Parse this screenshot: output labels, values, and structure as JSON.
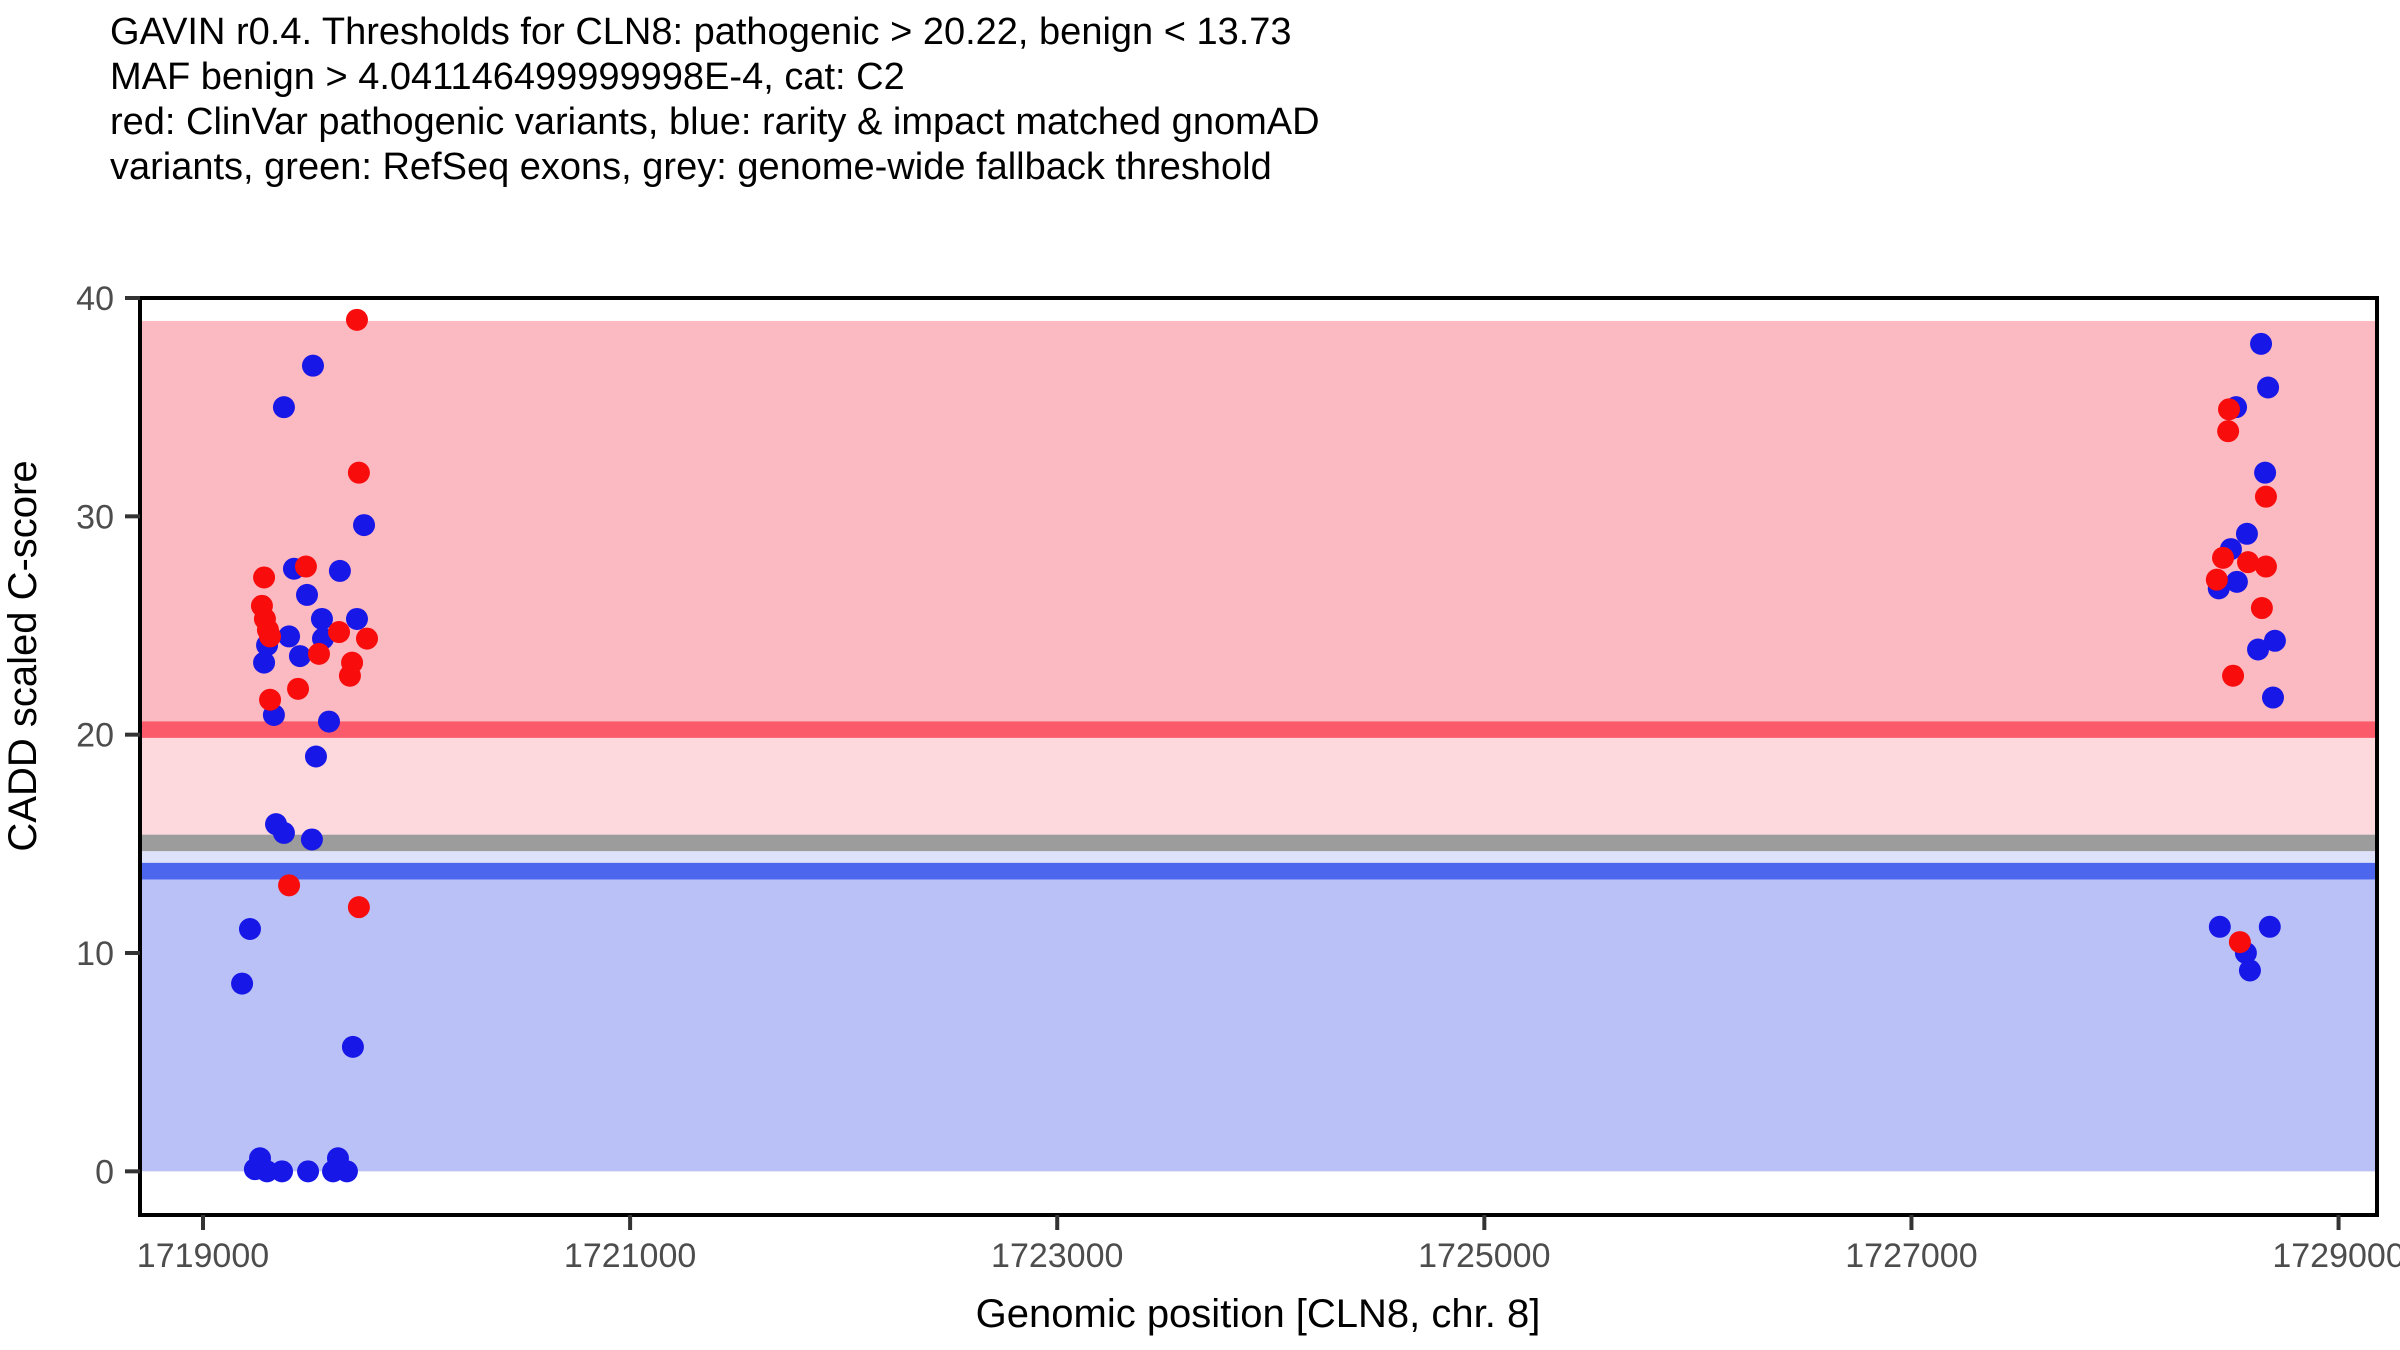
{
  "title": {
    "line1": "GAVIN r0.4. Thresholds for CLN8: pathogenic > 20.22, benign < 13.73",
    "line2": "MAF benign > 4.041146499999998E-4, cat: C2",
    "line3": "red: ClinVar pathogenic variants, blue: rarity & impact matched gnomAD",
    "line4": "variants, green: RefSeq exons, grey: genome-wide fallback threshold"
  },
  "chart_data": {
    "type": "scatter",
    "xlabel": "Genomic position [CLN8, chr. 8]",
    "ylabel": "CADD scaled C-score",
    "xlim": [
      1718705,
      1729180
    ],
    "ylim": [
      -2,
      40
    ],
    "x_ticks": [
      1719000,
      1721000,
      1723000,
      1725000,
      1727000,
      1729000
    ],
    "y_ticks": [
      0,
      10,
      20,
      30,
      40
    ],
    "grid": false,
    "legend_position": "in-title",
    "thresholds": {
      "pathogenic_gt": 20.22,
      "benign_lt": 13.73,
      "genome_wide_fallback": 15,
      "maf_benign_gt": "4.041146499999998E-4",
      "category": "C2"
    },
    "bands": [
      {
        "name": "pathogenic-region",
        "color": "#FBB9C1",
        "from": 20.61,
        "to": 38.95
      },
      {
        "name": "pathogenic-threshold-line",
        "color": "#FB5A6A",
        "from": 19.85,
        "to": 20.61,
        "threshold": 20.22
      },
      {
        "name": "intermediate-region",
        "color": "#FDD8DD",
        "from": 15.42,
        "to": 19.85
      },
      {
        "name": "genome-wide-fallback-band",
        "color": "#9C9C9C",
        "from": 14.66,
        "to": 15.42,
        "threshold": 15
      },
      {
        "name": "benign-upper-strip",
        "color": "#DDE1FA",
        "from": 14.13,
        "to": 14.66
      },
      {
        "name": "benign-threshold-line",
        "color": "#4C66EE",
        "from": 13.36,
        "to": 14.13,
        "threshold": 13.73
      },
      {
        "name": "benign-region",
        "color": "#BAC1F7",
        "from": 0,
        "to": 13.36
      }
    ],
    "series": [
      {
        "id": "gnomad-variant",
        "name": "rarity & impact matched gnomAD variants",
        "color": "#1717E8",
        "points": [
          [
            1719515,
            36.9
          ],
          [
            1719379,
            35.0
          ],
          [
            1719754,
            29.6
          ],
          [
            1719426,
            27.6
          ],
          [
            1719641,
            27.5
          ],
          [
            1719487,
            26.4
          ],
          [
            1719557,
            25.3
          ],
          [
            1719721,
            25.3
          ],
          [
            1719403,
            24.5
          ],
          [
            1719562,
            24.4
          ],
          [
            1719300,
            24.1
          ],
          [
            1719454,
            23.6
          ],
          [
            1719286,
            23.3
          ],
          [
            1719332,
            20.9
          ],
          [
            1719590,
            20.6
          ],
          [
            1719529,
            19.0
          ],
          [
            1719342,
            15.9
          ],
          [
            1719379,
            15.5
          ],
          [
            1719510,
            15.2
          ],
          [
            1719220,
            11.1
          ],
          [
            1719183,
            8.6
          ],
          [
            1719702,
            5.7
          ],
          [
            1719267,
            0.6
          ],
          [
            1719243,
            0.1
          ],
          [
            1719300,
            0.0
          ],
          [
            1719370,
            0.0
          ],
          [
            1719492,
            0.0
          ],
          [
            1719632,
            0.6
          ],
          [
            1719609,
            0.0
          ],
          [
            1719674,
            0.0
          ],
          [
            1728637,
            37.9
          ],
          [
            1728670,
            35.9
          ],
          [
            1728520,
            35.0
          ],
          [
            1728656,
            32.0
          ],
          [
            1728571,
            29.2
          ],
          [
            1728496,
            28.5
          ],
          [
            1728524,
            27.0
          ],
          [
            1728439,
            26.7
          ],
          [
            1728702,
            24.3
          ],
          [
            1728623,
            23.9
          ],
          [
            1728693,
            21.7
          ],
          [
            1728444,
            11.2
          ],
          [
            1728678,
            11.2
          ],
          [
            1728566,
            10.0
          ],
          [
            1728585,
            9.2
          ]
        ]
      },
      {
        "id": "clinvar-pathogenic-variant",
        "name": "ClinVar pathogenic variants",
        "color": "#F80C0C",
        "points": [
          [
            1719721,
            39.0
          ],
          [
            1719730,
            32.0
          ],
          [
            1719482,
            27.7
          ],
          [
            1719286,
            27.2
          ],
          [
            1719276,
            25.9
          ],
          [
            1719290,
            25.3
          ],
          [
            1719304,
            24.8
          ],
          [
            1719314,
            24.5
          ],
          [
            1719637,
            24.7
          ],
          [
            1719768,
            24.4
          ],
          [
            1719543,
            23.7
          ],
          [
            1719698,
            23.3
          ],
          [
            1719688,
            22.7
          ],
          [
            1719445,
            22.1
          ],
          [
            1719314,
            21.6
          ],
          [
            1719403,
            13.1
          ],
          [
            1719730,
            12.1
          ],
          [
            1728487,
            34.9
          ],
          [
            1728483,
            33.9
          ],
          [
            1728660,
            30.9
          ],
          [
            1728459,
            28.1
          ],
          [
            1728576,
            27.9
          ],
          [
            1728660,
            27.7
          ],
          [
            1728430,
            27.1
          ],
          [
            1728641,
            25.8
          ],
          [
            1728506,
            22.7
          ],
          [
            1728538,
            10.5
          ]
        ]
      }
    ]
  }
}
